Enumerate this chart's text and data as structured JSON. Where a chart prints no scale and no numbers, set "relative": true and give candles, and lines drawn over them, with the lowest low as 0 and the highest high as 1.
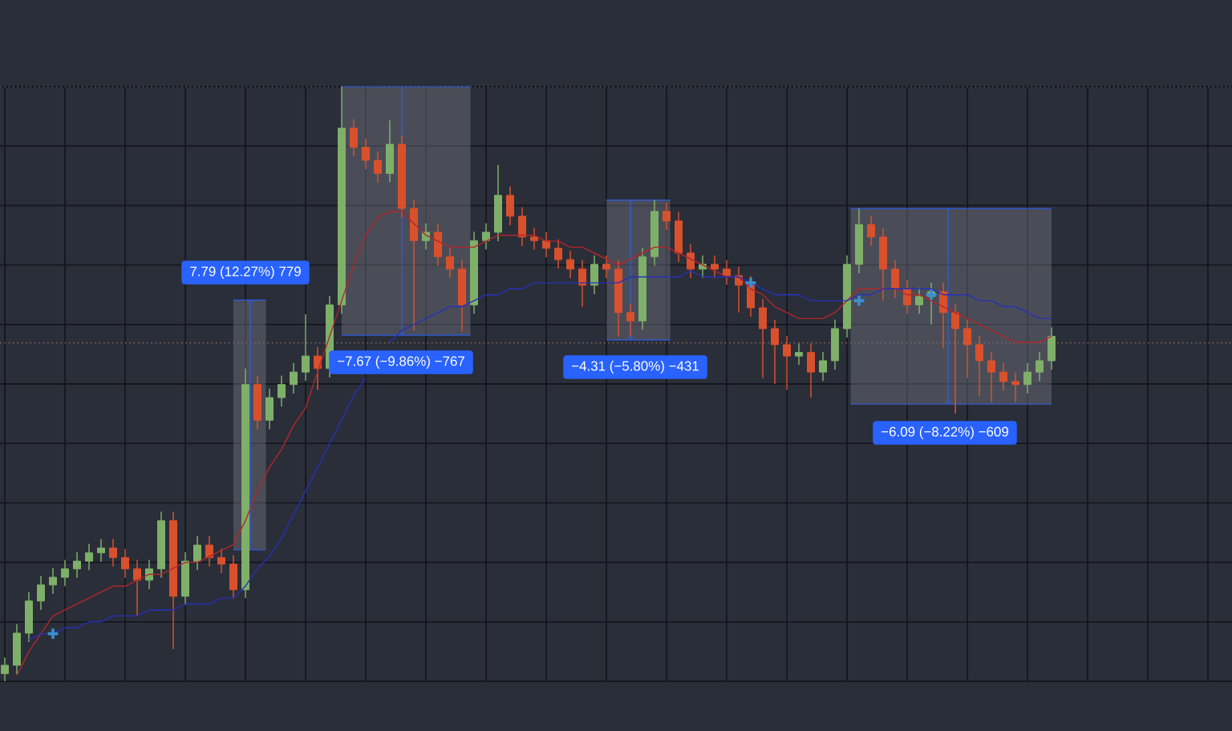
{
  "chart_data": {
    "type": "candlestick",
    "relative": true,
    "tick_labels": false,
    "grid": true,
    "categories": [
      null,
      null,
      null,
      null,
      null,
      null,
      null,
      null,
      null,
      null,
      null,
      null,
      null,
      null,
      null,
      null,
      null,
      null,
      null,
      null,
      null,
      null,
      null,
      null,
      null,
      null,
      null,
      null,
      null,
      null,
      null,
      null,
      null,
      null,
      null,
      null,
      null,
      null,
      null,
      null,
      null,
      null,
      null,
      null,
      null,
      null,
      null,
      null,
      null,
      null,
      null,
      null,
      null,
      null,
      null,
      null,
      null,
      null,
      null,
      null,
      null,
      null,
      null,
      null,
      null,
      null,
      null,
      null,
      null,
      null,
      null,
      null,
      null,
      null,
      null,
      null,
      null,
      null,
      null,
      null,
      null,
      null,
      null,
      null,
      null,
      null,
      null,
      null
    ],
    "ohlc": [
      [
        0.013,
        0.04,
        0.0,
        0.027
      ],
      [
        0.027,
        0.096,
        0.012,
        0.081
      ],
      [
        0.081,
        0.15,
        0.066,
        0.135
      ],
      [
        0.135,
        0.177,
        0.12,
        0.162
      ],
      [
        0.162,
        0.19,
        0.147,
        0.175
      ],
      [
        0.175,
        0.204,
        0.16,
        0.189
      ],
      [
        0.189,
        0.217,
        0.174,
        0.202
      ],
      [
        0.202,
        0.231,
        0.187,
        0.216
      ],
      [
        0.216,
        0.239,
        0.201,
        0.224
      ],
      [
        0.224,
        0.239,
        0.193,
        0.208
      ],
      [
        0.208,
        0.223,
        0.174,
        0.189
      ],
      [
        0.189,
        0.204,
        0.11,
        0.17
      ],
      [
        0.17,
        0.204,
        0.155,
        0.189
      ],
      [
        0.189,
        0.285,
        0.174,
        0.27
      ],
      [
        0.27,
        0.285,
        0.054,
        0.143
      ],
      [
        0.143,
        0.217,
        0.128,
        0.202
      ],
      [
        0.202,
        0.244,
        0.187,
        0.229
      ],
      [
        0.229,
        0.244,
        0.193,
        0.208
      ],
      [
        0.208,
        0.223,
        0.182,
        0.197
      ],
      [
        0.197,
        0.212,
        0.139,
        0.154
      ],
      [
        0.154,
        0.526,
        0.14,
        0.499
      ],
      [
        0.499,
        0.514,
        0.424,
        0.439
      ],
      [
        0.439,
        0.492,
        0.424,
        0.477
      ],
      [
        0.477,
        0.514,
        0.462,
        0.499
      ],
      [
        0.499,
        0.535,
        0.484,
        0.52
      ],
      [
        0.52,
        0.617,
        0.505,
        0.547
      ],
      [
        0.547,
        0.562,
        0.49,
        0.526
      ],
      [
        0.526,
        0.648,
        0.511,
        0.633
      ],
      [
        0.633,
        1.0,
        0.618,
        0.93
      ],
      [
        0.93,
        0.945,
        0.883,
        0.898
      ],
      [
        0.898,
        0.913,
        0.861,
        0.876
      ],
      [
        0.876,
        0.891,
        0.839,
        0.854
      ],
      [
        0.854,
        0.943,
        0.839,
        0.903
      ],
      [
        0.903,
        0.918,
        0.78,
        0.795
      ],
      [
        0.795,
        0.81,
        0.59,
        0.741
      ],
      [
        0.741,
        0.77,
        0.726,
        0.755
      ],
      [
        0.755,
        0.77,
        0.699,
        0.714
      ],
      [
        0.714,
        0.729,
        0.678,
        0.693
      ],
      [
        0.693,
        0.708,
        0.588,
        0.633
      ],
      [
        0.633,
        0.756,
        0.618,
        0.741
      ],
      [
        0.741,
        0.77,
        0.726,
        0.755
      ],
      [
        0.755,
        0.868,
        0.74,
        0.817
      ],
      [
        0.817,
        0.832,
        0.767,
        0.782
      ],
      [
        0.782,
        0.797,
        0.732,
        0.747
      ],
      [
        0.747,
        0.762,
        0.726,
        0.741
      ],
      [
        0.741,
        0.756,
        0.713,
        0.728
      ],
      [
        0.728,
        0.743,
        0.694,
        0.709
      ],
      [
        0.709,
        0.724,
        0.678,
        0.693
      ],
      [
        0.693,
        0.708,
        0.63,
        0.666
      ],
      [
        0.666,
        0.716,
        0.651,
        0.701
      ],
      [
        0.701,
        0.716,
        0.678,
        0.693
      ],
      [
        0.693,
        0.708,
        0.58,
        0.62
      ],
      [
        0.62,
        0.635,
        0.58,
        0.606
      ],
      [
        0.606,
        0.729,
        0.591,
        0.714
      ],
      [
        0.714,
        0.809,
        0.699,
        0.79
      ],
      [
        0.79,
        0.805,
        0.759,
        0.774
      ],
      [
        0.774,
        0.789,
        0.705,
        0.72
      ],
      [
        0.72,
        0.735,
        0.678,
        0.693
      ],
      [
        0.693,
        0.716,
        0.678,
        0.701
      ],
      [
        0.701,
        0.716,
        0.678,
        0.693
      ],
      [
        0.693,
        0.708,
        0.667,
        0.682
      ],
      [
        0.682,
        0.697,
        0.62,
        0.666
      ],
      [
        0.666,
        0.681,
        0.613,
        0.628
      ],
      [
        0.628,
        0.643,
        0.51,
        0.593
      ],
      [
        0.593,
        0.608,
        0.5,
        0.566
      ],
      [
        0.566,
        0.581,
        0.49,
        0.547
      ],
      [
        0.547,
        0.568,
        0.532,
        0.553
      ],
      [
        0.553,
        0.568,
        0.477,
        0.52
      ],
      [
        0.52,
        0.554,
        0.505,
        0.539
      ],
      [
        0.539,
        0.608,
        0.524,
        0.593
      ],
      [
        0.593,
        0.716,
        0.578,
        0.701
      ],
      [
        0.701,
        0.795,
        0.686,
        0.768
      ],
      [
        0.768,
        0.783,
        0.732,
        0.747
      ],
      [
        0.747,
        0.762,
        0.64,
        0.693
      ],
      [
        0.693,
        0.708,
        0.645,
        0.66
      ],
      [
        0.66,
        0.675,
        0.618,
        0.633
      ],
      [
        0.633,
        0.662,
        0.618,
        0.647
      ],
      [
        0.647,
        0.67,
        0.6,
        0.655
      ],
      [
        0.655,
        0.67,
        0.56,
        0.62
      ],
      [
        0.62,
        0.635,
        0.45,
        0.593
      ],
      [
        0.593,
        0.608,
        0.51,
        0.566
      ],
      [
        0.566,
        0.581,
        0.48,
        0.539
      ],
      [
        0.539,
        0.554,
        0.47,
        0.52
      ],
      [
        0.52,
        0.535,
        0.489,
        0.504
      ],
      [
        0.504,
        0.519,
        0.47,
        0.499
      ],
      [
        0.499,
        0.535,
        0.484,
        0.52
      ],
      [
        0.52,
        0.554,
        0.505,
        0.539
      ],
      [
        0.539,
        0.595,
        0.524,
        0.58
      ]
    ],
    "colors": [
      "#7fb069",
      "#7fb069",
      "#7fb069",
      "#7fb069",
      "#7fb069",
      "#7fb069",
      "#7fb069",
      "#7fb069",
      "#7fb069",
      "#d9512c",
      "#d9512c",
      "#d9512c",
      "#7fb069",
      "#7fb069",
      "#d9512c",
      "#7fb069",
      "#7fb069",
      "#d9512c",
      "#d9512c",
      "#d9512c",
      "#7fb069",
      "#d9512c",
      "#7fb069",
      "#7fb069",
      "#7fb069",
      "#7fb069",
      "#d9512c",
      "#7fb069",
      "#7fb069",
      "#d9512c",
      "#d9512c",
      "#d9512c",
      "#7fb069",
      "#d9512c",
      "#d9512c",
      "#7fb069",
      "#d9512c",
      "#d9512c",
      "#d9512c",
      "#7fb069",
      "#7fb069",
      "#7fb069",
      "#d9512c",
      "#d9512c",
      "#d9512c",
      "#d9512c",
      "#d9512c",
      "#d9512c",
      "#d9512c",
      "#7fb069",
      "#d9512c",
      "#d9512c",
      "#d9512c",
      "#7fb069",
      "#7fb069",
      "#d9512c",
      "#d9512c",
      "#d9512c",
      "#7fb069",
      "#d9512c",
      "#d9512c",
      "#d9512c",
      "#d9512c",
      "#d9512c",
      "#d9512c",
      "#d9512c",
      "#7fb069",
      "#d9512c",
      "#7fb069",
      "#7fb069",
      "#7fb069",
      "#7fb069",
      "#d9512c",
      "#d9512c",
      "#d9512c",
      "#d9512c",
      "#7fb069",
      "#7fb069",
      "#d9512c",
      "#d9512c",
      "#d9512c",
      "#d9512c",
      "#d9512c",
      "#d9512c",
      "#d9512c",
      "#7fb069",
      "#7fb069",
      "#7fb069"
    ],
    "series": [
      {
        "type": "line",
        "color": "#b3262b",
        "values": [
          null,
          0.01,
          0.05,
          0.08,
          0.11,
          0.12,
          0.13,
          0.14,
          0.15,
          0.16,
          0.16,
          0.17,
          0.18,
          0.18,
          0.19,
          0.2,
          0.2,
          0.21,
          0.22,
          0.23,
          0.27,
          0.32,
          0.36,
          0.39,
          0.43,
          0.46,
          0.52,
          0.58,
          0.64,
          0.7,
          0.75,
          0.78,
          0.79,
          0.79,
          0.77,
          0.75,
          0.74,
          0.73,
          0.73,
          0.73,
          0.74,
          0.75,
          0.75,
          0.75,
          0.75,
          0.74,
          0.74,
          0.73,
          0.73,
          0.72,
          0.71,
          0.7,
          0.71,
          0.72,
          0.73,
          0.73,
          0.72,
          0.71,
          0.7,
          0.69,
          0.68,
          0.68,
          0.66,
          0.65,
          0.63,
          0.62,
          0.61,
          0.61,
          0.61,
          0.62,
          0.64,
          0.66,
          0.66,
          0.66,
          0.66,
          0.65,
          0.65,
          0.64,
          0.63,
          0.62,
          0.61,
          0.6,
          0.59,
          0.58,
          0.57,
          0.57,
          0.57,
          0.58
        ]
      },
      {
        "type": "line",
        "color": "#2630b8",
        "values": [
          null,
          null,
          0.07,
          0.08,
          0.08,
          0.09,
          0.09,
          0.1,
          0.1,
          0.11,
          0.11,
          0.11,
          0.12,
          0.12,
          0.12,
          0.13,
          0.13,
          0.13,
          0.14,
          0.14,
          0.16,
          0.19,
          0.21,
          0.24,
          0.28,
          0.32,
          0.36,
          0.4,
          0.44,
          0.48,
          0.51,
          null,
          0.57,
          0.59,
          0.6,
          0.61,
          0.62,
          0.63,
          0.63,
          0.64,
          0.65,
          0.65,
          0.66,
          0.66,
          0.67,
          0.67,
          0.67,
          0.67,
          0.67,
          0.67,
          0.67,
          0.67,
          0.68,
          0.68,
          0.68,
          0.68,
          0.68,
          0.69,
          0.68,
          0.68,
          0.68,
          0.68,
          0.67,
          0.66,
          0.65,
          0.65,
          0.65,
          0.64,
          0.64,
          0.64,
          0.64,
          0.65,
          0.65,
          0.66,
          0.66,
          0.66,
          0.66,
          0.66,
          0.65,
          0.65,
          0.65,
          0.64,
          0.64,
          0.63,
          0.63,
          0.62,
          0.61,
          0.61
        ]
      },
      {
        "type": "scatter",
        "color": "#3b8ed0",
        "marker": "cross",
        "values": [
          null,
          null,
          null,
          null,
          0.08,
          null,
          null,
          null,
          null,
          null,
          null,
          null,
          null,
          null,
          null,
          null,
          null,
          null,
          null,
          null,
          null,
          null,
          null,
          null,
          null,
          null,
          null,
          null,
          null,
          null,
          null,
          null,
          null,
          null,
          null,
          null,
          null,
          null,
          null,
          null,
          null,
          null,
          null,
          null,
          null,
          null,
          null,
          null,
          null,
          null,
          null,
          null,
          null,
          null,
          null,
          null,
          null,
          null,
          null,
          null,
          null,
          null,
          0.67,
          null,
          null,
          null,
          null,
          null,
          null,
          null,
          null,
          0.64,
          null,
          null,
          null,
          null,
          null,
          0.65,
          null,
          null,
          null,
          null,
          null,
          null,
          null,
          null,
          null,
          null
        ]
      }
    ],
    "ref_lines": [
      {
        "axis": "y",
        "value": 0.569,
        "color": "#8c6d55",
        "line_style": "dotted"
      },
      {
        "axis": "y",
        "value": 1.0,
        "color": "#5e6270",
        "line_style": "dotted"
      }
    ],
    "annotations": [
      "7.79 (12.27%) 779",
      "−7.67 (−9.86%) −767",
      "−4.31 (−5.80%) −431",
      "−6.09 (−8.22%) −609"
    ]
  }
}
